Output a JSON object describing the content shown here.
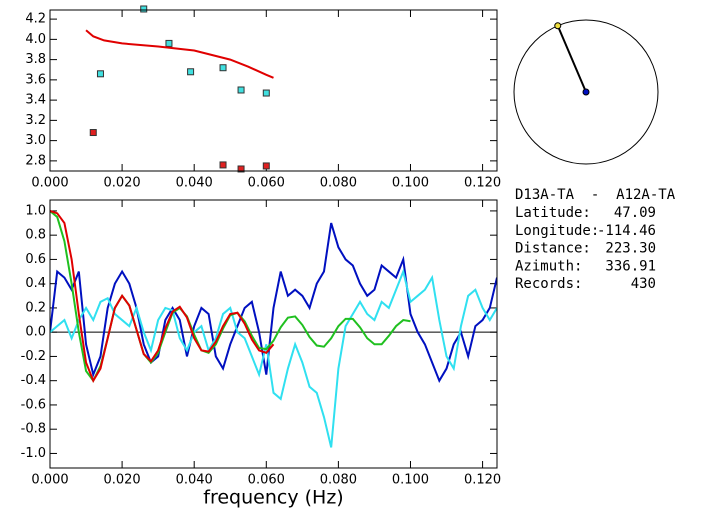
{
  "chart_data": [
    {
      "type": "scatter",
      "xlim": [
        0,
        0.124
      ],
      "ylim": [
        2.7,
        4.29
      ],
      "xticks": [
        {
          "value": 0,
          "label": "0.000"
        },
        {
          "value": 0.02,
          "label": "0.020"
        },
        {
          "value": 0.04,
          "label": "0.040"
        },
        {
          "value": 0.06,
          "label": "0.060"
        },
        {
          "value": 0.08,
          "label": "0.080"
        },
        {
          "value": 0.1,
          "label": "0.100"
        },
        {
          "value": 0.12,
          "label": "0.120"
        }
      ],
      "yticks": [
        2.8,
        {
          "value": 3,
          "label": "3.0"
        },
        3.2,
        3.4,
        3.6,
        3.8,
        {
          "value": 4,
          "label": "4.0"
        },
        4.2
      ],
      "series": [
        {
          "style": "markers",
          "color": "#40e0e0",
          "x": [
            0.014,
            0.026,
            0.033,
            0.039,
            0.048,
            0.053,
            0.06
          ],
          "values": [
            3.66,
            4.3,
            3.96,
            3.68,
            3.72,
            3.5,
            3.47
          ]
        },
        {
          "style": "markers",
          "color": "#e02020",
          "x": [
            0.012,
            0.048,
            0.053,
            0.06
          ],
          "values": [
            3.08,
            2.76,
            2.72,
            2.75
          ]
        },
        {
          "style": "line",
          "color": "#e00000",
          "x": [
            0.01,
            0.012,
            0.015,
            0.02,
            0.03,
            0.04,
            0.05,
            0.055,
            0.06,
            0.062
          ],
          "values": [
            4.09,
            4.03,
            3.99,
            3.96,
            3.93,
            3.89,
            3.8,
            3.73,
            3.65,
            3.62
          ]
        }
      ]
    },
    {
      "type": "line",
      "x_label": "frequency (Hz)",
      "xlim": [
        0,
        0.124
      ],
      "ylim": [
        -1.12,
        1.09
      ],
      "zero_line": true,
      "xticks": [
        {
          "value": 0,
          "label": "0.000"
        },
        {
          "value": 0.02,
          "label": "0.020"
        },
        {
          "value": 0.04,
          "label": "0.040"
        },
        {
          "value": 0.06,
          "label": "0.060"
        },
        {
          "value": 0.08,
          "label": "0.080"
        },
        {
          "value": 0.1,
          "label": "0.100"
        },
        {
          "value": 0.12,
          "label": "0.120"
        }
      ],
      "yticks": [
        {
          "value": -1,
          "label": "-1.0"
        },
        -0.8,
        -0.6,
        -0.4,
        -0.2,
        {
          "value": 0,
          "label": "0.0"
        },
        0.2,
        0.4,
        0.6,
        0.8,
        {
          "value": 1,
          "label": "1.0"
        }
      ],
      "x": [
        0,
        0.002,
        0.004,
        0.006,
        0.008,
        0.01,
        0.012,
        0.014,
        0.016,
        0.018,
        0.02,
        0.022,
        0.024,
        0.026,
        0.028,
        0.03,
        0.032,
        0.034,
        0.036,
        0.038,
        0.04,
        0.042,
        0.044,
        0.046,
        0.048,
        0.05,
        0.052,
        0.054,
        0.056,
        0.058,
        0.06,
        0.062,
        0.064,
        0.066,
        0.068,
        0.07,
        0.072,
        0.074,
        0.076,
        0.078,
        0.08,
        0.082,
        0.084,
        0.086,
        0.088,
        0.09,
        0.092,
        0.094,
        0.096,
        0.098,
        0.1,
        0.102,
        0.104,
        0.106,
        0.108,
        0.11,
        0.112,
        0.114,
        0.116,
        0.118,
        0.12,
        0.122,
        0.124
      ],
      "series": [
        {
          "style": "line",
          "color": "#0010c0",
          "values": [
            0.0,
            0.5,
            0.45,
            0.35,
            0.5,
            -0.1,
            -0.35,
            -0.2,
            0.2,
            0.4,
            0.5,
            0.4,
            0.2,
            -0.1,
            -0.25,
            -0.2,
            0.1,
            0.2,
            0.1,
            -0.2,
            0.05,
            0.2,
            0.15,
            -0.2,
            -0.3,
            -0.1,
            0.05,
            0.2,
            0.25,
            0.0,
            -0.35,
            0.2,
            0.5,
            0.3,
            0.35,
            0.3,
            0.2,
            0.4,
            0.5,
            0.9,
            0.7,
            0.6,
            0.55,
            0.4,
            0.3,
            0.35,
            0.55,
            0.5,
            0.45,
            0.6,
            0.15,
            0.0,
            -0.1,
            -0.25,
            -0.4,
            -0.3,
            -0.1,
            0.0,
            -0.2,
            0.05,
            0.1,
            0.2,
            0.45
          ]
        },
        {
          "style": "line",
          "color": "#30e0f0",
          "values": [
            0.0,
            0.05,
            0.1,
            -0.05,
            0.1,
            0.2,
            0.1,
            0.25,
            0.28,
            0.15,
            0.1,
            0.05,
            0.2,
            0.0,
            -0.15,
            0.1,
            0.2,
            0.18,
            -0.05,
            -0.15,
            0.0,
            0.05,
            -0.15,
            -0.05,
            0.15,
            0.2,
            0.0,
            -0.05,
            -0.2,
            -0.35,
            -0.1,
            -0.5,
            -0.55,
            -0.3,
            -0.1,
            -0.25,
            -0.45,
            -0.5,
            -0.7,
            -0.95,
            -0.3,
            0.05,
            0.15,
            0.25,
            0.15,
            0.1,
            0.25,
            0.2,
            0.35,
            0.5,
            0.25,
            0.3,
            0.35,
            0.45,
            0.1,
            -0.2,
            -0.3,
            0.05,
            0.3,
            0.35,
            0.2,
            0.1,
            0.2
          ]
        },
        {
          "style": "line",
          "color": "#20c020",
          "values": [
            1.0,
            0.95,
            0.75,
            0.4,
            0.0,
            -0.32,
            -0.4,
            -0.28,
            -0.05,
            0.2,
            0.3,
            0.22,
            0.02,
            -0.18,
            -0.25,
            -0.17,
            0.0,
            0.16,
            0.2,
            0.13,
            -0.02,
            -0.15,
            -0.17,
            -0.1,
            0.03,
            0.14,
            0.16,
            0.09,
            -0.03,
            -0.13,
            -0.14,
            -0.07,
            0.04,
            0.12,
            0.13,
            0.06,
            -0.04,
            -0.11,
            -0.12,
            -0.05,
            0.05,
            0.11,
            0.11,
            0.04,
            -0.05,
            -0.1,
            -0.1,
            -0.03,
            0.05,
            0.1,
            0.09,
            null,
            null,
            null,
            null,
            null,
            null,
            null,
            null,
            null,
            null,
            null,
            null
          ]
        },
        {
          "style": "line",
          "color": "#e00000",
          "values": [
            1.0,
            0.98,
            0.9,
            0.6,
            0.15,
            -0.25,
            -0.4,
            -0.3,
            -0.05,
            0.2,
            0.3,
            0.22,
            0.02,
            -0.18,
            -0.24,
            -0.15,
            0.03,
            0.17,
            0.21,
            0.12,
            -0.05,
            -0.15,
            -0.16,
            -0.08,
            0.05,
            0.15,
            0.16,
            0.07,
            -0.06,
            -0.15,
            -0.17,
            -0.1,
            null,
            null,
            null,
            null,
            null,
            null,
            null,
            null,
            null,
            null,
            null,
            null,
            null,
            null,
            null,
            null,
            null,
            null,
            null,
            null,
            null,
            null,
            null,
            null,
            null,
            null,
            null,
            null,
            null,
            null,
            null
          ]
        }
      ]
    }
  ],
  "info": {
    "title": "D13A-TA  -  A12A-TA",
    "rows": [
      [
        "Latitude:",
        "47.09"
      ],
      [
        "Longitude:",
        "-114.46"
      ],
      [
        "Distance:",
        "223.30"
      ],
      [
        "Azimuth:",
        336.91
      ],
      [
        "Records:",
        "430"
      ]
    ]
  }
}
